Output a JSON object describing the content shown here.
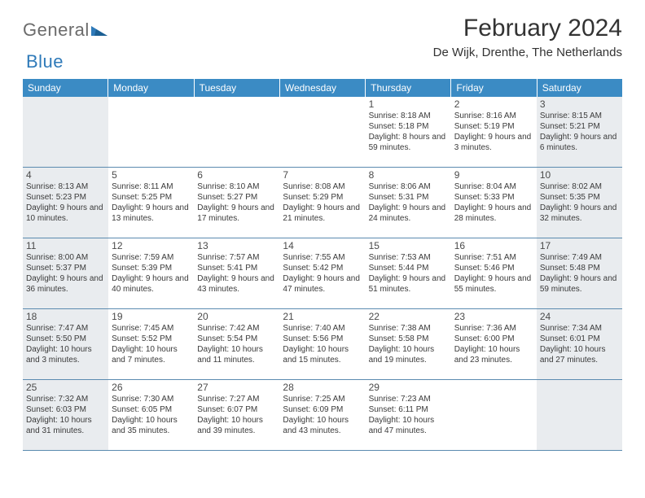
{
  "logo": {
    "word1": "General",
    "word2": "Blue"
  },
  "header": {
    "month": "February 2024",
    "location": "De Wijk, Drenthe, The Netherlands"
  },
  "dayNames": [
    "Sunday",
    "Monday",
    "Tuesday",
    "Wednesday",
    "Thursday",
    "Friday",
    "Saturday"
  ],
  "colors": {
    "headerBg": "#3b8bc4",
    "headerFg": "#ffffff",
    "weekendBg": "#e9ecef",
    "weekdayBg": "#ffffff",
    "borderColor": "#5b8bb0",
    "logoGray": "#6b6b6b",
    "logoBlue": "#2f7ab9"
  },
  "grid": {
    "firstWeekday": 4,
    "daysInMonth": 29,
    "weekendColumns": [
      0,
      6
    ]
  },
  "days": {
    "1": {
      "sunrise": "8:18 AM",
      "sunset": "5:18 PM",
      "daylight": "8 hours and 59 minutes."
    },
    "2": {
      "sunrise": "8:16 AM",
      "sunset": "5:19 PM",
      "daylight": "9 hours and 3 minutes."
    },
    "3": {
      "sunrise": "8:15 AM",
      "sunset": "5:21 PM",
      "daylight": "9 hours and 6 minutes."
    },
    "4": {
      "sunrise": "8:13 AM",
      "sunset": "5:23 PM",
      "daylight": "9 hours and 10 minutes."
    },
    "5": {
      "sunrise": "8:11 AM",
      "sunset": "5:25 PM",
      "daylight": "9 hours and 13 minutes."
    },
    "6": {
      "sunrise": "8:10 AM",
      "sunset": "5:27 PM",
      "daylight": "9 hours and 17 minutes."
    },
    "7": {
      "sunrise": "8:08 AM",
      "sunset": "5:29 PM",
      "daylight": "9 hours and 21 minutes."
    },
    "8": {
      "sunrise": "8:06 AM",
      "sunset": "5:31 PM",
      "daylight": "9 hours and 24 minutes."
    },
    "9": {
      "sunrise": "8:04 AM",
      "sunset": "5:33 PM",
      "daylight": "9 hours and 28 minutes."
    },
    "10": {
      "sunrise": "8:02 AM",
      "sunset": "5:35 PM",
      "daylight": "9 hours and 32 minutes."
    },
    "11": {
      "sunrise": "8:00 AM",
      "sunset": "5:37 PM",
      "daylight": "9 hours and 36 minutes."
    },
    "12": {
      "sunrise": "7:59 AM",
      "sunset": "5:39 PM",
      "daylight": "9 hours and 40 minutes."
    },
    "13": {
      "sunrise": "7:57 AM",
      "sunset": "5:41 PM",
      "daylight": "9 hours and 43 minutes."
    },
    "14": {
      "sunrise": "7:55 AM",
      "sunset": "5:42 PM",
      "daylight": "9 hours and 47 minutes."
    },
    "15": {
      "sunrise": "7:53 AM",
      "sunset": "5:44 PM",
      "daylight": "9 hours and 51 minutes."
    },
    "16": {
      "sunrise": "7:51 AM",
      "sunset": "5:46 PM",
      "daylight": "9 hours and 55 minutes."
    },
    "17": {
      "sunrise": "7:49 AM",
      "sunset": "5:48 PM",
      "daylight": "9 hours and 59 minutes."
    },
    "18": {
      "sunrise": "7:47 AM",
      "sunset": "5:50 PM",
      "daylight": "10 hours and 3 minutes."
    },
    "19": {
      "sunrise": "7:45 AM",
      "sunset": "5:52 PM",
      "daylight": "10 hours and 7 minutes."
    },
    "20": {
      "sunrise": "7:42 AM",
      "sunset": "5:54 PM",
      "daylight": "10 hours and 11 minutes."
    },
    "21": {
      "sunrise": "7:40 AM",
      "sunset": "5:56 PM",
      "daylight": "10 hours and 15 minutes."
    },
    "22": {
      "sunrise": "7:38 AM",
      "sunset": "5:58 PM",
      "daylight": "10 hours and 19 minutes."
    },
    "23": {
      "sunrise": "7:36 AM",
      "sunset": "6:00 PM",
      "daylight": "10 hours and 23 minutes."
    },
    "24": {
      "sunrise": "7:34 AM",
      "sunset": "6:01 PM",
      "daylight": "10 hours and 27 minutes."
    },
    "25": {
      "sunrise": "7:32 AM",
      "sunset": "6:03 PM",
      "daylight": "10 hours and 31 minutes."
    },
    "26": {
      "sunrise": "7:30 AM",
      "sunset": "6:05 PM",
      "daylight": "10 hours and 35 minutes."
    },
    "27": {
      "sunrise": "7:27 AM",
      "sunset": "6:07 PM",
      "daylight": "10 hours and 39 minutes."
    },
    "28": {
      "sunrise": "7:25 AM",
      "sunset": "6:09 PM",
      "daylight": "10 hours and 43 minutes."
    },
    "29": {
      "sunrise": "7:23 AM",
      "sunset": "6:11 PM",
      "daylight": "10 hours and 47 minutes."
    }
  },
  "labels": {
    "sunrise": "Sunrise:",
    "sunset": "Sunset:",
    "daylight": "Daylight:"
  }
}
